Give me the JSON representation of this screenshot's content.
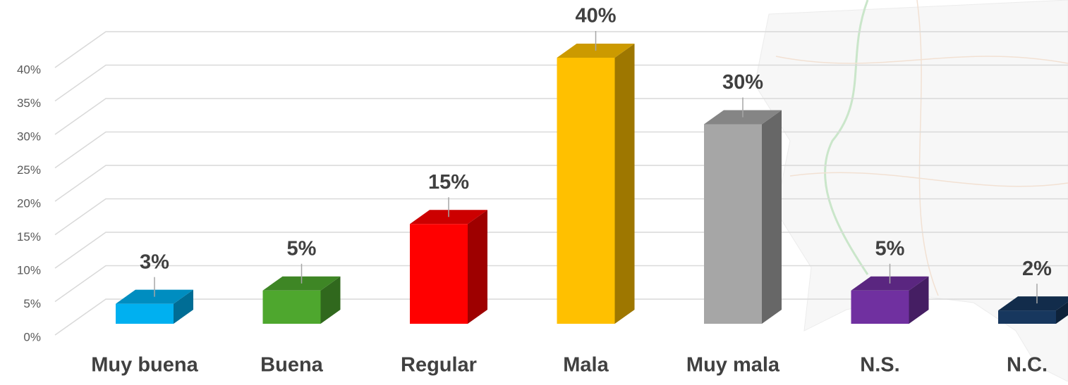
{
  "chart_data": {
    "type": "bar3d",
    "categories": [
      "Muy buena",
      "Buena",
      "Regular",
      "Mala",
      "Muy mala",
      "N.S.",
      "N.C."
    ],
    "values": [
      3,
      5,
      15,
      40,
      30,
      5,
      2
    ],
    "value_labels": [
      "3%",
      "5%",
      "15%",
      "40%",
      "30%",
      "5%",
      "2%"
    ],
    "colors": [
      "#00b0f0",
      "#4ea72e",
      "#ff0000",
      "#ffc000",
      "#a6a6a6",
      "#7030a0",
      "#17375e"
    ],
    "ylim": [
      0,
      40
    ],
    "yticks": [
      {
        "value": 0,
        "label": "0%"
      },
      {
        "value": 5,
        "label": "5%"
      },
      {
        "value": 10,
        "label": "10%"
      },
      {
        "value": 15,
        "label": "15%"
      },
      {
        "value": 20,
        "label": "20%"
      },
      {
        "value": 25,
        "label": "25%"
      },
      {
        "value": 30,
        "label": "30%"
      },
      {
        "value": 35,
        "label": "35%"
      },
      {
        "value": 40,
        "label": "40%"
      }
    ],
    "grid": true
  }
}
